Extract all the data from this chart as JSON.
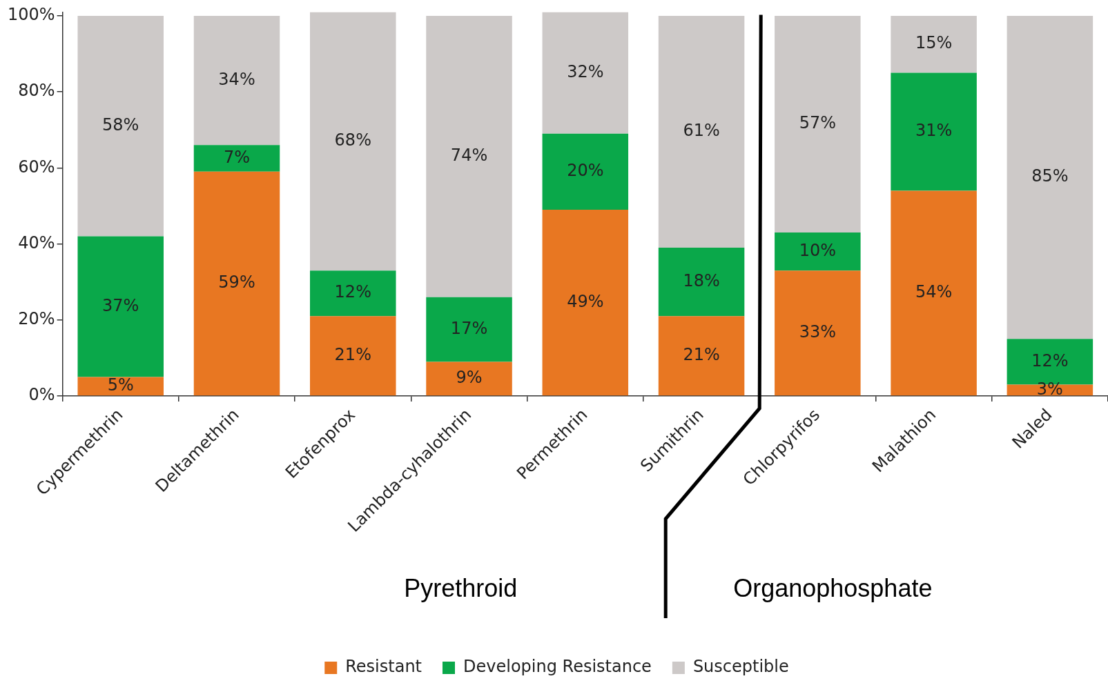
{
  "chart_data": {
    "type": "bar",
    "stacked": true,
    "categories": [
      "Cypermethrin",
      "Deltamethrin",
      "Etofenprox",
      "Lambda-cyhalothrin",
      "Permethrin",
      "Sumithrin",
      "Chlorpyrifos",
      "Malathion",
      "Naled"
    ],
    "series": [
      {
        "name": "Resistant",
        "color": "#e87722",
        "values": [
          5,
          59,
          21,
          9,
          49,
          21,
          33,
          54,
          3
        ],
        "value_labels": [
          "5%",
          "59%",
          "21%",
          "9%",
          "49%",
          "21%",
          "33%",
          "54%",
          "3%"
        ]
      },
      {
        "name": "Developing Resistance",
        "color": "#0aa84a",
        "values": [
          37,
          7,
          12,
          17,
          20,
          18,
          10,
          31,
          12
        ],
        "value_labels": [
          "37%",
          "7%",
          "12%",
          "17%",
          "20%",
          "18%",
          "10%",
          "31%",
          "12%"
        ]
      },
      {
        "name": "Susceptible",
        "color": "#cdc9c8",
        "values": [
          58,
          34,
          68,
          74,
          32,
          61,
          57,
          15,
          85
        ],
        "value_labels": [
          "58%",
          "34%",
          "68%",
          "74%",
          "32%",
          "61%",
          "57%",
          "15%",
          "85%"
        ]
      }
    ],
    "ylim": [
      0,
      101
    ],
    "yticks": [
      {
        "value": 0,
        "label": "0%"
      },
      {
        "value": 20,
        "label": "20%"
      },
      {
        "value": 40,
        "label": "40%"
      },
      {
        "value": 60,
        "label": "60%"
      },
      {
        "value": 80,
        "label": "80%"
      },
      {
        "value": 100,
        "label": "100%"
      }
    ],
    "grid": false,
    "legend": "bottom",
    "annotations": [
      "Pyrethroid",
      "Organophosphate"
    ]
  }
}
